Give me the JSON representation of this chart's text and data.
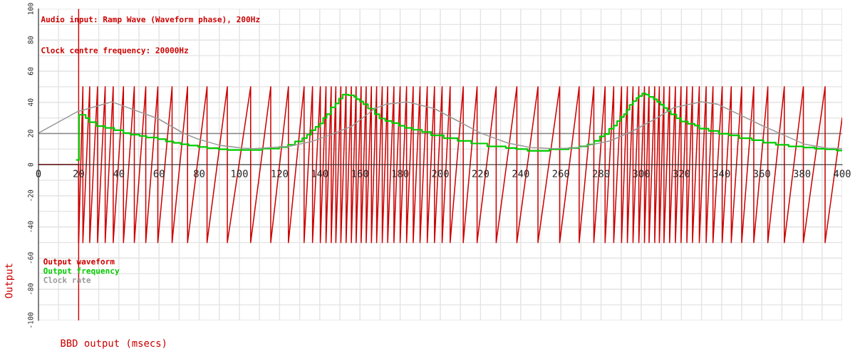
{
  "chart_data": {
    "type": "line",
    "annotations": [
      "Audio input: Ramp Wave (Waveform phase), 200Hz",
      "Clock centre frequency: 20000Hz"
    ],
    "xlabel": "BBD output (msecs)",
    "ylabel": "Output",
    "xlim": [
      0,
      400
    ],
    "ylim": [
      -100,
      100
    ],
    "xticks": [
      0,
      {
        "value": 10,
        "label": null
      },
      20,
      {
        "value": 30,
        "label": null
      },
      40,
      {
        "value": 50,
        "label": null
      },
      60,
      {
        "value": 70,
        "label": null
      },
      80,
      {
        "value": 90,
        "label": null
      },
      100,
      {
        "value": 110,
        "label": null
      },
      120,
      {
        "value": 130,
        "label": null
      },
      140,
      {
        "value": 150,
        "label": null
      },
      160,
      {
        "value": 170,
        "label": null
      },
      180,
      {
        "value": 190,
        "label": null
      },
      200,
      {
        "value": 210,
        "label": null
      },
      220,
      {
        "value": 230,
        "label": null
      },
      240,
      {
        "value": 250,
        "label": null
      },
      260,
      {
        "value": 270,
        "label": null
      },
      280,
      {
        "value": 290,
        "label": null
      },
      300,
      {
        "value": 310,
        "label": null
      },
      320,
      {
        "value": 330,
        "label": null
      },
      340,
      {
        "value": 350,
        "label": null
      },
      360,
      {
        "value": 370,
        "label": null
      },
      380,
      {
        "value": 390,
        "label": null
      },
      400
    ],
    "yticks": [
      -100,
      {
        "value": -90,
        "label": null
      },
      -80,
      {
        "value": -70,
        "label": null
      },
      -60,
      {
        "value": -50,
        "label": null
      },
      -40,
      {
        "value": -30,
        "label": null
      },
      -20,
      {
        "value": -10,
        "label": null
      },
      0,
      {
        "value": 10,
        "label": null
      },
      20,
      {
        "value": 30,
        "label": null
      },
      40,
      {
        "value": 50,
        "label": null
      },
      60,
      {
        "value": 70,
        "label": null
      },
      80,
      {
        "value": 90,
        "label": null
      },
      100
    ],
    "grid": true,
    "legend": "bottom left",
    "ref_lines": [
      {
        "axis": "y",
        "value": 20,
        "color": "#888888"
      },
      {
        "axis": "x",
        "value": 20,
        "color": "#cc0000"
      }
    ],
    "series": [
      {
        "name": "Output waveform",
        "color": "#cc0000",
        "x": [
          0,
          20,
          20,
          22.1,
          22.1,
          25.5,
          25.5,
          29.4,
          29.4,
          33.2,
          33.2,
          37.2,
          37.2,
          42.3,
          42.3,
          47.7,
          47.7,
          53.4,
          53.4,
          59.4,
          59.4,
          66.5,
          66.5,
          74.2,
          74.2,
          83.9,
          83.9,
          94.0,
          94.0,
          105.6,
          105.6,
          115.6,
          115.6,
          124.4,
          124.4,
          132.2,
          132.2,
          136.4,
          136.4,
          140.3,
          140.3,
          143.1,
          143.1,
          145.7,
          145.7,
          148.0,
          148.0,
          150.5,
          150.5,
          153.1,
          153.1,
          155.7,
          155.7,
          158.1,
          158.1,
          160.6,
          160.6,
          163.1,
          163.1,
          165.7,
          165.7,
          168.3,
          168.3,
          171.1,
          171.1,
          173.8,
          173.8,
          176.9,
          176.9,
          180.0,
          180.0,
          183.2,
          183.2,
          186.5,
          186.5,
          189.9,
          189.9,
          193.5,
          193.5,
          197.1,
          197.1,
          200.9,
          200.9,
          204.9,
          204.9,
          211.4,
          211.4,
          218.3,
          218.3,
          227.8,
          227.8,
          238.1,
          238.1,
          248.6,
          248.6,
          259.4,
          259.4,
          269.1,
          269.1,
          276.4,
          276.4,
          282.0,
          282.0,
          286.3,
          286.3,
          290.2,
          290.2,
          293.1,
          293.1,
          295.9,
          295.9,
          298.8,
          298.8,
          301.6,
          301.6,
          303.9,
          303.9,
          306.7,
          306.7,
          309.0,
          309.0,
          311.3,
          311.3,
          314.1,
          314.1,
          317.0,
          317.0,
          319.8,
          319.8,
          322.7,
          322.7,
          325.5,
          325.5,
          328.9,
          328.9,
          332.3,
          332.3,
          335.7,
          335.7,
          340.3,
          340.3,
          344.8,
          344.8,
          350.0,
          350.0,
          356.0,
          356.0,
          363.0,
          363.0,
          371.2,
          371.2,
          380.7,
          380.7,
          391.5,
          391.5,
          400
        ],
        "values": [
          0,
          0,
          -50,
          50,
          -50,
          50,
          -50,
          50,
          -50,
          50,
          -50,
          50,
          -50,
          50,
          -50,
          50,
          -50,
          50,
          -50,
          50,
          -50,
          50,
          -50,
          50,
          -50,
          50,
          -50,
          50,
          -50,
          50,
          -50,
          50,
          -50,
          50,
          -50,
          50,
          -50,
          50,
          -50,
          50,
          -50,
          50,
          -50,
          50,
          -50,
          50,
          -50,
          50,
          -50,
          50,
          -50,
          50,
          -50,
          50,
          -50,
          50,
          -50,
          50,
          -50,
          50,
          -50,
          50,
          -50,
          50,
          -50,
          50,
          -50,
          50,
          -50,
          50,
          -50,
          50,
          -50,
          50,
          -50,
          50,
          -50,
          50,
          -50,
          50,
          -50,
          50,
          -50,
          50,
          -50,
          50,
          -50,
          50,
          -50,
          50,
          -50,
          50,
          -50,
          50,
          -50,
          50,
          -50,
          50,
          -50,
          50,
          -50,
          50,
          -50,
          50,
          -50,
          50,
          -50,
          50,
          -50,
          50,
          -50,
          50,
          -50,
          50,
          -50,
          50,
          -50,
          50,
          -50,
          50,
          -50,
          50,
          -50,
          50,
          -50,
          50,
          -50,
          50,
          -50,
          50,
          -50,
          50,
          -50,
          50,
          -50,
          50,
          -50,
          50,
          -50,
          50,
          -50,
          50,
          -50,
          50,
          -50,
          50,
          -50,
          50,
          -50,
          50,
          -50,
          50,
          -50,
          50,
          -50,
          30
        ]
      },
      {
        "name": "Output frequency",
        "type": "step",
        "color": "#00cc00",
        "x": [
          19,
          20.2,
          23.5,
          25.4,
          28.8,
          33.2,
          37.7,
          42.3,
          45.7,
          50.3,
          53.7,
          59.4,
          63.4,
          67.2,
          70.8,
          74.8,
          79.4,
          84,
          89.6,
          94.2,
          111.3,
          119.8,
          124.2,
          127.7,
          131.3,
          133.6,
          135.7,
          137.9,
          140,
          141.7,
          143.4,
          145.5,
          147.8,
          149.5,
          151.4,
          154.3,
          157.1,
          158.3,
          160,
          161.7,
          164,
          167.4,
          169.7,
          172.6,
          176,
          179.4,
          182.3,
          186.3,
          190.9,
          195.4,
          201.7,
          208.6,
          215.4,
          223.4,
          232.6,
          237.7,
          243.4,
          254.3,
          264,
          269.1,
          273.2,
          276.6,
          279.4,
          281.7,
          284,
          286.3,
          288,
          289.7,
          291.4,
          292.7,
          294.2,
          295.9,
          297.6,
          298.8,
          300.5,
          302.2,
          303.9,
          306.2,
          307.9,
          309.6,
          311.3,
          313,
          314.7,
          317.5,
          319.8,
          323.2,
          326.6,
          328.9,
          333.5,
          338.6,
          343.7,
          348.8,
          355.1,
          360.8,
          367,
          373.3,
          380.7,
          386.4,
          391.5,
          397.2,
          400
        ],
        "values": [
          3,
          32,
          29.9,
          27.3,
          24.7,
          23.6,
          22.1,
          20.3,
          19.3,
          18.4,
          17.4,
          16.4,
          14.9,
          14.0,
          13.1,
          12.3,
          11.4,
          10.6,
          9.9,
          9.4,
          10.3,
          11.3,
          12.8,
          14.9,
          17,
          19.2,
          22.1,
          24.3,
          26.4,
          30,
          32.4,
          36.7,
          39.3,
          42.4,
          45,
          44.5,
          43.5,
          42,
          40.5,
          38.8,
          36,
          32.4,
          29.6,
          28.1,
          26.7,
          25,
          23.6,
          22.4,
          21,
          18.8,
          17,
          15.3,
          13.6,
          11.7,
          10.7,
          10,
          8.9,
          9.9,
          10.7,
          11.7,
          13,
          15.3,
          18.1,
          19.6,
          23,
          25.1,
          28,
          30.6,
          32.4,
          35.2,
          38.4,
          40.8,
          42.8,
          44.1,
          45.7,
          45,
          43.5,
          42,
          40.3,
          38.5,
          36.4,
          34.5,
          32.3,
          29.8,
          27.7,
          26.2,
          25.1,
          23.1,
          21.7,
          19.8,
          18.8,
          17,
          15.7,
          14.1,
          12.7,
          11.7,
          11,
          10.2,
          9.9,
          9.1,
          9.1
        ]
      },
      {
        "name": "Clock rate",
        "color": "#999999",
        "x": [
          0,
          19,
          36.6,
          59.4,
          72,
          78.8,
          90.2,
          101.6,
          107,
          124.4,
          136,
          144.6,
          156,
          167.4,
          173,
          183.4,
          197,
          208.6,
          220,
          233.7,
          245,
          256.6,
          267.5,
          284.6,
          295.9,
          307.3,
          316.4,
          330,
          338,
          349.5,
          360.8,
          369.9,
          381.3,
          392.6,
          400
        ],
        "values": [
          20.3,
          33.8,
          40.3,
          29.6,
          20.3,
          16.7,
          12.4,
          10.6,
          10.3,
          11.7,
          14.9,
          18.8,
          24.7,
          36,
          38.8,
          40.3,
          36,
          28.1,
          20.3,
          13.8,
          11,
          10.3,
          10.7,
          15.3,
          21.7,
          29.6,
          36.7,
          40.3,
          38.8,
          31.7,
          24.7,
          19.6,
          13.1,
          10.6,
          10.3
        ]
      }
    ]
  }
}
